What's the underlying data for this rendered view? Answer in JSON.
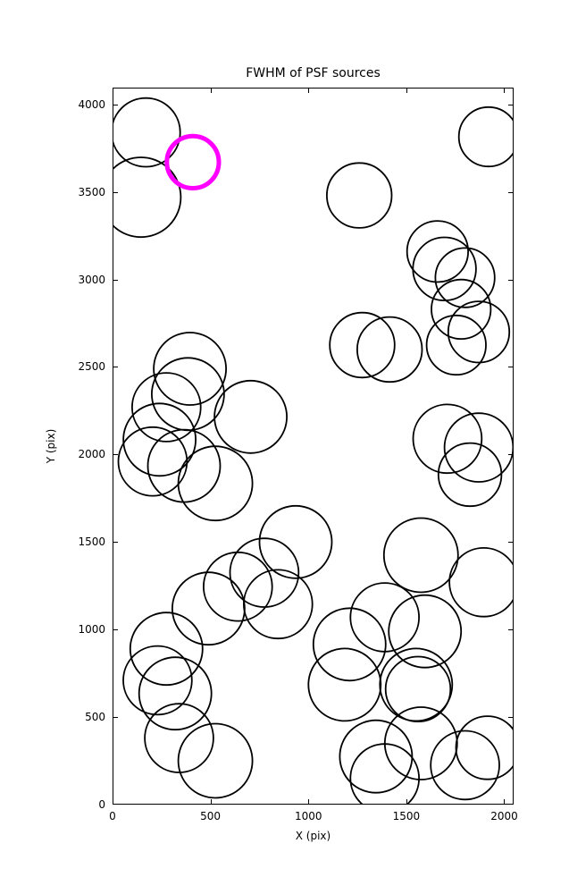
{
  "figure": {
    "title": "FWHM of PSF sources",
    "xlabel": "X (pix)",
    "ylabel": "Y (pix)"
  },
  "chart_data": {
    "type": "scatter",
    "title": "FWHM of PSF sources",
    "xlabel": "X (pix)",
    "ylabel": "Y (pix)",
    "xlim": [
      0,
      2048
    ],
    "ylim": [
      0,
      4096
    ],
    "xticks": [
      0,
      500,
      1000,
      1500,
      2000
    ],
    "yticks": [
      0,
      500,
      1000,
      1500,
      2000,
      2500,
      3000,
      3500,
      4000
    ],
    "grid": false,
    "legend": "none",
    "marker_style": "open-circle",
    "colors": {
      "source_stroke": "#000000",
      "highlight_stroke": "#ff00ff",
      "background": "#ffffff"
    },
    "source_stroke_width": 1.8,
    "highlight_stroke_width": 5,
    "sources": [
      {
        "x": 170,
        "y": 3840,
        "r": 185
      },
      {
        "x": 145,
        "y": 3470,
        "r": 215
      },
      {
        "x": 1920,
        "y": 3815,
        "r": 160
      },
      {
        "x": 1260,
        "y": 3480,
        "r": 175
      },
      {
        "x": 1660,
        "y": 3160,
        "r": 165
      },
      {
        "x": 1695,
        "y": 3060,
        "r": 170
      },
      {
        "x": 1800,
        "y": 3010,
        "r": 160
      },
      {
        "x": 1780,
        "y": 2830,
        "r": 160
      },
      {
        "x": 1870,
        "y": 2700,
        "r": 165
      },
      {
        "x": 1755,
        "y": 2625,
        "r": 160
      },
      {
        "x": 1275,
        "y": 2625,
        "r": 175
      },
      {
        "x": 1415,
        "y": 2600,
        "r": 175
      },
      {
        "x": 395,
        "y": 2490,
        "r": 195
      },
      {
        "x": 385,
        "y": 2345,
        "r": 195
      },
      {
        "x": 275,
        "y": 2270,
        "r": 185
      },
      {
        "x": 240,
        "y": 2085,
        "r": 195
      },
      {
        "x": 205,
        "y": 1960,
        "r": 185
      },
      {
        "x": 365,
        "y": 1935,
        "r": 195
      },
      {
        "x": 525,
        "y": 1835,
        "r": 200
      },
      {
        "x": 705,
        "y": 2215,
        "r": 195
      },
      {
        "x": 1710,
        "y": 2090,
        "r": 185
      },
      {
        "x": 1870,
        "y": 2040,
        "r": 185
      },
      {
        "x": 1825,
        "y": 1885,
        "r": 170
      },
      {
        "x": 935,
        "y": 1500,
        "r": 195
      },
      {
        "x": 775,
        "y": 1325,
        "r": 185
      },
      {
        "x": 640,
        "y": 1245,
        "r": 185
      },
      {
        "x": 490,
        "y": 1120,
        "r": 195
      },
      {
        "x": 845,
        "y": 1145,
        "r": 185
      },
      {
        "x": 1575,
        "y": 1425,
        "r": 200
      },
      {
        "x": 1895,
        "y": 1270,
        "r": 185
      },
      {
        "x": 1390,
        "y": 1070,
        "r": 185
      },
      {
        "x": 1595,
        "y": 990,
        "r": 195
      },
      {
        "x": 1210,
        "y": 915,
        "r": 195
      },
      {
        "x": 1185,
        "y": 685,
        "r": 195
      },
      {
        "x": 1550,
        "y": 685,
        "r": 195
      },
      {
        "x": 1560,
        "y": 660,
        "r": 175
      },
      {
        "x": 275,
        "y": 890,
        "r": 195
      },
      {
        "x": 230,
        "y": 710,
        "r": 185
      },
      {
        "x": 320,
        "y": 635,
        "r": 195
      },
      {
        "x": 340,
        "y": 380,
        "r": 185
      },
      {
        "x": 525,
        "y": 250,
        "r": 200
      },
      {
        "x": 1345,
        "y": 275,
        "r": 195
      },
      {
        "x": 1390,
        "y": 150,
        "r": 185
      },
      {
        "x": 1575,
        "y": 350,
        "r": 195
      },
      {
        "x": 1800,
        "y": 225,
        "r": 185
      },
      {
        "x": 1915,
        "y": 325,
        "r": 170
      }
    ],
    "highlighted_source": {
      "x": 410,
      "y": 3670,
      "r": 140
    }
  }
}
